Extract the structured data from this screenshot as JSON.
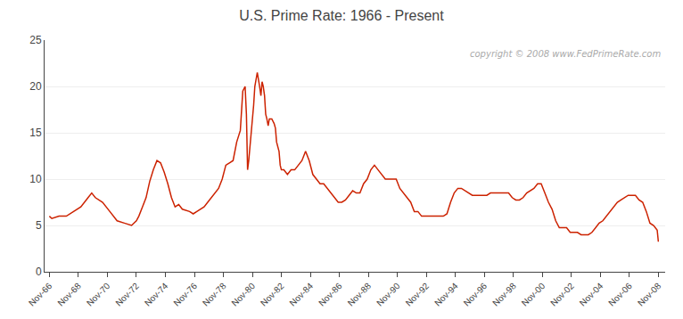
{
  "chart_data": {
    "type": "line",
    "title": "U.S. Prime Rate: 1966 - Present",
    "annotations": [
      "copyright © 2008 www.FedPrimeRate.com"
    ],
    "color": "#cc2200",
    "grid": "y",
    "xlim": [
      1966.5,
      2009.3
    ],
    "ylim": [
      0,
      25
    ],
    "yticks": [
      0,
      5,
      10,
      15,
      20,
      25
    ],
    "xticks": [
      {
        "value": 1966.8333333333333,
        "label": "Nov-66"
      },
      {
        "value": 1968.8333333333333,
        "label": "Nov-68"
      },
      {
        "value": 1970.8333333333333,
        "label": "Nov-70"
      },
      {
        "value": 1972.8333333333333,
        "label": "Nov-72"
      },
      {
        "value": 1974.8333333333333,
        "label": "Nov-74"
      },
      {
        "value": 1976.8333333333333,
        "label": "Nov-76"
      },
      {
        "value": 1978.8333333333333,
        "label": "Nov-78"
      },
      {
        "value": 1980.8333333333333,
        "label": "Nov-80"
      },
      {
        "value": 1982.8333333333333,
        "label": "Nov-82"
      },
      {
        "value": 1984.8333333333333,
        "label": "Nov-84"
      },
      {
        "value": 1986.8333333333333,
        "label": "Nov-86"
      },
      {
        "value": 1988.8333333333333,
        "label": "Nov-88"
      },
      {
        "value": 1990.8333333333333,
        "label": "Nov-90"
      },
      {
        "value": 1992.8333333333333,
        "label": "Nov-92"
      },
      {
        "value": 1994.8333333333333,
        "label": "Nov-94"
      },
      {
        "value": 1996.8333333333333,
        "label": "Nov-96"
      },
      {
        "value": 1998.8333333333333,
        "label": "Nov-98"
      },
      {
        "value": 2000.8333333333333,
        "label": "Nov-00"
      },
      {
        "value": 2002.8333333333333,
        "label": "Nov-02"
      },
      {
        "value": 2004.8333333333333,
        "label": "Nov-04"
      },
      {
        "value": 2006.8333333333333,
        "label": "Nov-06"
      },
      {
        "value": 2008.8333333333333,
        "label": "Nov-08"
      }
    ],
    "x": [
      1966.83,
      1967.0,
      1967.5,
      1968.0,
      1968.5,
      1969.0,
      1969.5,
      1969.75,
      1970.0,
      1970.5,
      1971.0,
      1971.5,
      1972.0,
      1972.5,
      1972.83,
      1973.0,
      1973.25,
      1973.5,
      1973.75,
      1974.0,
      1974.25,
      1974.5,
      1974.75,
      1975.0,
      1975.25,
      1975.5,
      1975.75,
      1976.0,
      1976.5,
      1976.75,
      1977.0,
      1977.25,
      1977.5,
      1977.75,
      1978.0,
      1978.25,
      1978.5,
      1978.75,
      1979.0,
      1979.25,
      1979.5,
      1979.75,
      1980.0,
      1980.17,
      1980.33,
      1980.42,
      1980.5,
      1980.58,
      1980.67,
      1980.75,
      1980.83,
      1980.92,
      1981.0,
      1981.17,
      1981.33,
      1981.42,
      1981.5,
      1981.58,
      1981.67,
      1981.75,
      1981.83,
      1981.92,
      1982.0,
      1982.17,
      1982.33,
      1982.42,
      1982.5,
      1982.67,
      1982.75,
      1982.83,
      1982.92,
      1983.0,
      1983.25,
      1983.5,
      1983.75,
      1984.0,
      1984.25,
      1984.5,
      1984.75,
      1985.0,
      1985.25,
      1985.5,
      1985.75,
      1986.0,
      1986.25,
      1986.5,
      1986.75,
      1987.0,
      1987.25,
      1987.5,
      1987.75,
      1988.0,
      1988.25,
      1988.5,
      1988.75,
      1989.0,
      1989.25,
      1989.5,
      1989.75,
      1990.0,
      1990.25,
      1990.5,
      1990.75,
      1991.0,
      1991.25,
      1991.5,
      1991.75,
      1992.0,
      1992.25,
      1992.5,
      1992.75,
      1993.0,
      1993.5,
      1994.0,
      1994.25,
      1994.5,
      1994.75,
      1995.0,
      1995.25,
      1995.5,
      1995.75,
      1996.0,
      1996.5,
      1997.0,
      1997.25,
      1997.5,
      1998.0,
      1998.25,
      1998.5,
      1998.75,
      1999.0,
      1999.25,
      1999.5,
      1999.75,
      2000.0,
      2000.25,
      2000.5,
      2000.75,
      2001.0,
      2001.25,
      2001.5,
      2001.75,
      2002.0,
      2002.25,
      2002.5,
      2002.75,
      2003.0,
      2003.25,
      2003.5,
      2003.75,
      2004.0,
      2004.25,
      2004.5,
      2004.75,
      2005.0,
      2005.25,
      2005.5,
      2005.75,
      2006.0,
      2006.25,
      2006.5,
      2006.75,
      2007.0,
      2007.25,
      2007.5,
      2007.75,
      2008.0,
      2008.25,
      2008.5,
      2008.75,
      2008.83
    ],
    "values": [
      6.0,
      5.75,
      6.0,
      6.0,
      6.5,
      7.0,
      8.0,
      8.5,
      8.0,
      7.5,
      6.5,
      5.5,
      5.25,
      5.0,
      5.5,
      6.0,
      7.0,
      8.0,
      9.75,
      11.0,
      12.0,
      11.75,
      10.75,
      9.5,
      8.0,
      7.0,
      7.25,
      6.75,
      6.5,
      6.25,
      6.5,
      6.75,
      7.0,
      7.5,
      8.0,
      8.5,
      9.0,
      10.0,
      11.5,
      11.75,
      12.0,
      14.0,
      15.25,
      19.5,
      20.0,
      17.0,
      11.0,
      12.0,
      13.5,
      14.5,
      16.0,
      18.0,
      20.0,
      21.5,
      20.0,
      19.0,
      20.5,
      20.0,
      19.0,
      17.0,
      16.5,
      15.75,
      16.5,
      16.5,
      16.0,
      15.5,
      14.0,
      13.0,
      11.5,
      11.0,
      11.0,
      11.0,
      10.5,
      11.0,
      11.0,
      11.5,
      12.0,
      13.0,
      12.0,
      10.5,
      10.0,
      9.5,
      9.5,
      9.0,
      8.5,
      8.0,
      7.5,
      7.5,
      7.75,
      8.25,
      8.75,
      8.5,
      8.5,
      9.5,
      10.0,
      11.0,
      11.5,
      11.0,
      10.5,
      10.0,
      10.0,
      10.0,
      10.0,
      9.0,
      8.5,
      8.0,
      7.5,
      6.5,
      6.5,
      6.0,
      6.0,
      6.0,
      6.0,
      6.0,
      6.25,
      7.5,
      8.5,
      9.0,
      9.0,
      8.75,
      8.5,
      8.25,
      8.25,
      8.25,
      8.5,
      8.5,
      8.5,
      8.5,
      8.5,
      8.0,
      7.75,
      7.75,
      8.0,
      8.5,
      8.75,
      9.0,
      9.5,
      9.5,
      8.5,
      7.5,
      6.75,
      5.5,
      4.75,
      4.75,
      4.75,
      4.25,
      4.25,
      4.25,
      4.0,
      4.0,
      4.0,
      4.25,
      4.75,
      5.25,
      5.5,
      6.0,
      6.5,
      7.0,
      7.5,
      7.75,
      8.0,
      8.25,
      8.25,
      8.25,
      7.75,
      7.5,
      6.5,
      5.25,
      5.0,
      4.5,
      3.25
    ]
  }
}
